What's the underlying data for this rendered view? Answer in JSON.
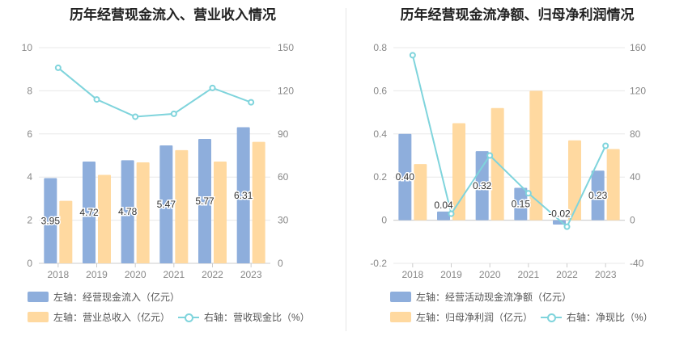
{
  "colors": {
    "bar_left": "#8eaedc",
    "bar_right": "#ffd9a0",
    "line": "#7fd4dc",
    "grid": "#e8e8e8",
    "axis_text": "#888888"
  },
  "chart_data": [
    {
      "type": "bar",
      "title": "历年经营现金流入、营业收入情况",
      "categories": [
        "2018",
        "2019",
        "2020",
        "2021",
        "2022",
        "2023"
      ],
      "left_axis": {
        "ylim": [
          0,
          10
        ],
        "ticks": [
          "0",
          "2",
          "4",
          "6",
          "8",
          "10"
        ]
      },
      "right_axis": {
        "ylim": [
          0,
          150
        ],
        "ticks": [
          "0",
          "30",
          "60",
          "90",
          "120",
          "150"
        ]
      },
      "series": [
        {
          "name": "左轴：经营现金流入（亿元）",
          "kind": "bar",
          "axis": "left",
          "values": [
            3.95,
            4.72,
            4.78,
            5.47,
            5.77,
            6.31
          ],
          "labels": [
            "3.95",
            "4.72",
            "4.78",
            "5.47",
            "5.77",
            "6.31"
          ]
        },
        {
          "name": "左轴：营业总收入（亿元）",
          "kind": "bar",
          "axis": "left",
          "values": [
            2.9,
            4.1,
            4.68,
            5.25,
            4.72,
            5.63
          ]
        },
        {
          "name": "右轴：营收现金比（%）",
          "kind": "line",
          "axis": "right",
          "values": [
            136,
            114,
            102,
            104,
            122,
            112
          ]
        }
      ],
      "grid": true,
      "legend_position": "bottom"
    },
    {
      "type": "bar",
      "title": "历年经营现金流净额、归母净利润情况",
      "categories": [
        "2018",
        "2019",
        "2020",
        "2021",
        "2022",
        "2023"
      ],
      "left_axis": {
        "ylim": [
          -0.2,
          0.8
        ],
        "ticks": [
          "-0.2",
          "0",
          "0.2",
          "0.4",
          "0.6",
          "0.8"
        ]
      },
      "right_axis": {
        "ylim": [
          -40,
          160
        ],
        "ticks": [
          "-40",
          "0",
          "40",
          "80",
          "120",
          "160"
        ]
      },
      "series": [
        {
          "name": "左轴：经营活动现金流净额（亿元）",
          "kind": "bar",
          "axis": "left",
          "values": [
            0.4,
            0.04,
            0.32,
            0.15,
            -0.02,
            0.23
          ],
          "labels": [
            "0.40",
            "0.04",
            "0.32",
            "0.15",
            "-0.02",
            "0.23"
          ]
        },
        {
          "name": "左轴：归母净利润（亿元）",
          "kind": "bar",
          "axis": "left",
          "values": [
            0.26,
            0.45,
            0.52,
            0.6,
            0.37,
            0.33
          ]
        },
        {
          "name": "右轴：净现比（%）",
          "kind": "line",
          "axis": "right",
          "values": [
            153,
            6,
            60,
            25,
            -6,
            69
          ]
        }
      ],
      "grid": true,
      "legend_position": "bottom"
    }
  ]
}
